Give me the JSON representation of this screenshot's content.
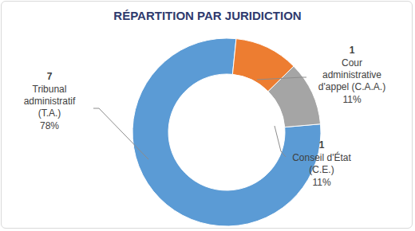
{
  "chart_data": {
    "type": "pie",
    "title": "RÉPARTITION PAR JURIDICTION",
    "categories": [
      "Tribunal\nadministratif\n(T.A.)",
      "Cour\nadministrative\nd'appel (C.A.A.)",
      "Conseil d'État\n(C.E.)"
    ],
    "counts": [
      7,
      1,
      1
    ],
    "values": [
      78,
      11,
      11
    ],
    "value_labels": [
      "78%",
      "11%",
      "11%"
    ],
    "colors": [
      "#5B9BD5",
      "#ED7D31",
      "#A5A5A5"
    ],
    "data_labels": true,
    "legend": false
  }
}
